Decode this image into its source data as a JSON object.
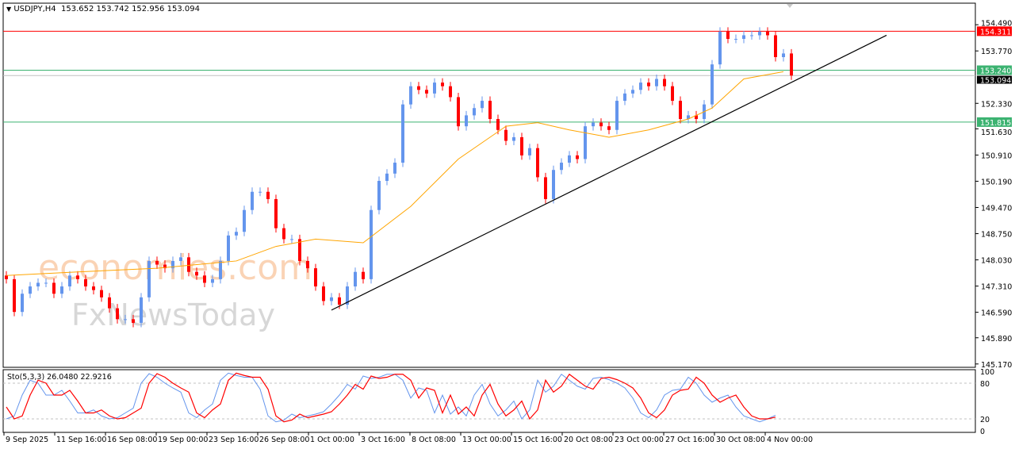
{
  "header": {
    "arrow_icon": "triangle-down-icon",
    "symbol": "USDJPY,H4",
    "ohlc": "153.652 153.742 152.956 153.094"
  },
  "watermark": {
    "line1": "economies.com",
    "line2": "FxNewsToday"
  },
  "chart_data": {
    "type": "candlestick",
    "y_ticks": [
      "154.490",
      "153.770",
      "152.330",
      "151.630",
      "150.910",
      "150.190",
      "149.470",
      "148.750",
      "148.030",
      "147.310",
      "146.590",
      "145.890",
      "145.170"
    ],
    "ylim": [
      145.1,
      155.06
    ],
    "x_ticks": [
      "9 Sep 2025",
      "11 Sep 16:00",
      "16 Sep 08:00",
      "19 Sep 00:00",
      "23 Sep 16:00",
      "26 Sep 08:00",
      "1 Oct 00:00",
      "3 Oct 16:00",
      "8 Oct 08:00",
      "13 Oct 00:00",
      "15 Oct 16:00",
      "20 Oct 08:00",
      "23 Oct 00:00",
      "27 Oct 16:00",
      "30 Oct 08:00",
      "4 Nov 00:00"
    ],
    "closes": [
      147.5,
      146.6,
      147.1,
      147.3,
      147.4,
      147.4,
      147.1,
      147.3,
      147.6,
      147.5,
      147.3,
      147.2,
      147.0,
      146.7,
      146.4,
      146.4,
      146.3,
      147.0,
      148.0,
      147.9,
      147.8,
      148.0,
      148.1,
      147.7,
      147.6,
      147.4,
      147.5,
      148.0,
      148.7,
      148.8,
      149.4,
      149.9,
      149.9,
      149.7,
      148.9,
      148.6,
      148.6,
      148.0,
      147.8,
      147.3,
      146.9,
      147.0,
      146.8,
      147.3,
      147.7,
      147.5,
      149.4,
      150.2,
      150.4,
      150.7,
      152.3,
      152.8,
      152.7,
      152.6,
      152.9,
      152.8,
      152.5,
      151.7,
      152.0,
      152.2,
      152.4,
      151.9,
      151.6,
      151.3,
      151.4,
      150.9,
      151.1,
      150.3,
      149.7,
      150.5,
      150.7,
      150.9,
      150.8,
      151.7,
      151.8,
      151.7,
      151.6,
      152.4,
      152.6,
      152.7,
      152.9,
      152.8,
      153.0,
      152.8,
      152.4,
      151.9,
      152.0,
      151.9,
      152.3,
      153.4,
      154.3,
      154.1,
      154.1,
      154.2,
      154.2,
      154.3,
      154.2,
      153.6,
      153.7,
      153.094
    ],
    "moving_average": [
      [
        0,
        147.6
      ],
      [
        9,
        147.7
      ],
      [
        19,
        147.8
      ],
      [
        29,
        148.0
      ],
      [
        34,
        148.4
      ],
      [
        39,
        148.6
      ],
      [
        45,
        148.5
      ],
      [
        51,
        149.5
      ],
      [
        57,
        150.8
      ],
      [
        63,
        151.7
      ],
      [
        67,
        151.8
      ],
      [
        71,
        151.6
      ],
      [
        76,
        151.4
      ],
      [
        81,
        151.6
      ],
      [
        86,
        151.9
      ],
      [
        89,
        152.2
      ],
      [
        93,
        153.0
      ],
      [
        98,
        153.2
      ]
    ],
    "trendline": {
      "start": [
        41,
        146.65
      ],
      "end": [
        111,
        154.2
      ]
    },
    "levels": [
      {
        "price": "154.311",
        "color": "#ff0000"
      },
      {
        "price": "153.240",
        "color": "#3cb371"
      },
      {
        "price": "151.815",
        "color": "#3cb371"
      }
    ],
    "current_price": "153.094",
    "colors": {
      "bull": "#6495ed",
      "bear": "#ff0000",
      "ma": "#ffa500",
      "stoch_k": "#6495ed",
      "stoch_d": "#ff0000"
    },
    "stochastic": {
      "label": "Sto(5,3,3) 26.0480 22.9216",
      "y_ticks": [
        "100",
        "80",
        "20",
        "0"
      ],
      "levels": [
        80,
        20
      ],
      "d": [
        40,
        20,
        25,
        60,
        85,
        80,
        60,
        60,
        68,
        50,
        30,
        30,
        35,
        25,
        20,
        22,
        30,
        38,
        80,
        96,
        90,
        80,
        72,
        65,
        30,
        22,
        35,
        45,
        85,
        97,
        93,
        90,
        90,
        70,
        25,
        15,
        18,
        28,
        22,
        25,
        28,
        32,
        45,
        60,
        78,
        70,
        92,
        88,
        90,
        95,
        95,
        85,
        55,
        72,
        68,
        30,
        60,
        28,
        40,
        25,
        60,
        78,
        45,
        25,
        35,
        50,
        20,
        35,
        85,
        65,
        75,
        95,
        85,
        75,
        70,
        88,
        90,
        86,
        80,
        72,
        55,
        30,
        22,
        35,
        60,
        68,
        70,
        90,
        80,
        60,
        48,
        55,
        60,
        40,
        25,
        20,
        20,
        22.9216
      ],
      "k": [
        20,
        25,
        60,
        85,
        80,
        60,
        60,
        68,
        50,
        30,
        30,
        35,
        25,
        20,
        22,
        30,
        38,
        80,
        96,
        90,
        80,
        72,
        65,
        30,
        22,
        35,
        45,
        85,
        97,
        93,
        90,
        90,
        70,
        25,
        15,
        18,
        28,
        22,
        25,
        28,
        32,
        45,
        60,
        78,
        70,
        92,
        88,
        90,
        95,
        95,
        85,
        55,
        72,
        68,
        30,
        60,
        28,
        40,
        25,
        60,
        78,
        45,
        25,
        35,
        50,
        20,
        35,
        85,
        65,
        75,
        95,
        85,
        75,
        70,
        88,
        90,
        86,
        80,
        72,
        55,
        30,
        22,
        35,
        60,
        68,
        70,
        90,
        80,
        60,
        48,
        55,
        60,
        40,
        25,
        20,
        15,
        20,
        26.048
      ]
    }
  }
}
